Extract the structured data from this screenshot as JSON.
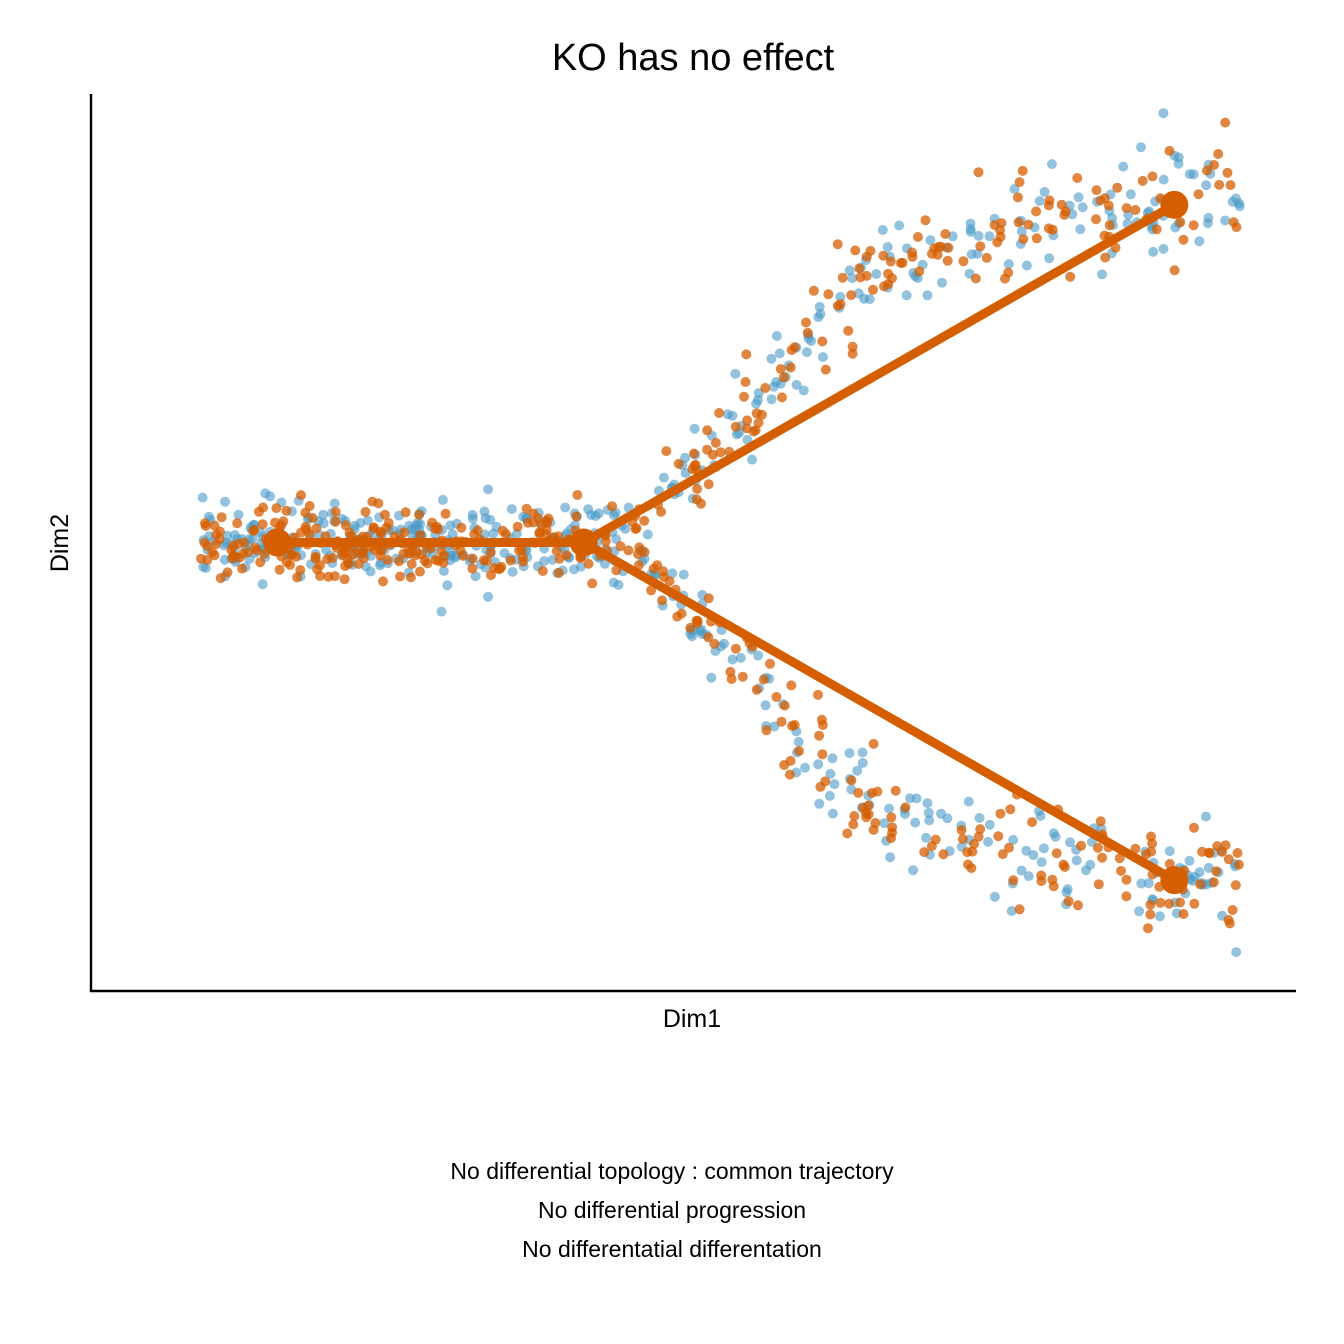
{
  "chart_data": {
    "type": "scatter",
    "title": "KO has no effect",
    "xlabel": "Dim1",
    "ylabel": "Dim2",
    "xlim": [
      0,
      1
    ],
    "ylim": [
      -1.1,
      1.1
    ],
    "ticks_shown": false,
    "grid": false,
    "legend": "none",
    "branches": {
      "stem": {
        "x0": 0.05,
        "x1": 0.4,
        "y": 0.0
      },
      "upper": {
        "start": [
          0.4,
          0.0
        ],
        "mid": [
          0.72,
          0.72
        ],
        "end": [
          1.0,
          0.83
        ],
        "spread_start": 0.05,
        "spread_end": 0.07
      },
      "lower": {
        "start": [
          0.4,
          0.0
        ],
        "mid": [
          0.72,
          -0.72
        ],
        "end": [
          1.0,
          -0.83
        ],
        "spread_start": 0.05,
        "spread_end": 0.07
      }
    },
    "series": [
      {
        "name": "",
        "color": "#4a9ac7",
        "opacity": 0.6,
        "points_per_branch": [
          230,
          160,
          160
        ],
        "seed": 11
      },
      {
        "name": "",
        "color": "#d55e00",
        "opacity": 0.75,
        "points_per_branch": [
          230,
          160,
          160
        ],
        "seed": 29
      }
    ],
    "trajectory": {
      "color": "#d55e00",
      "milestones": [
        {
          "x": 0.12,
          "y": 0.0
        },
        {
          "x": 0.4,
          "y": 0.0
        },
        {
          "x": 0.94,
          "y": 0.83
        },
        {
          "x": 0.94,
          "y": -0.83
        }
      ],
      "edges": [
        [
          0,
          1
        ],
        [
          1,
          2
        ],
        [
          1,
          3
        ]
      ]
    }
  },
  "captions": [
    "No differential topology : common trajectory",
    "No differential progression",
    "No differentatial differentation"
  ]
}
